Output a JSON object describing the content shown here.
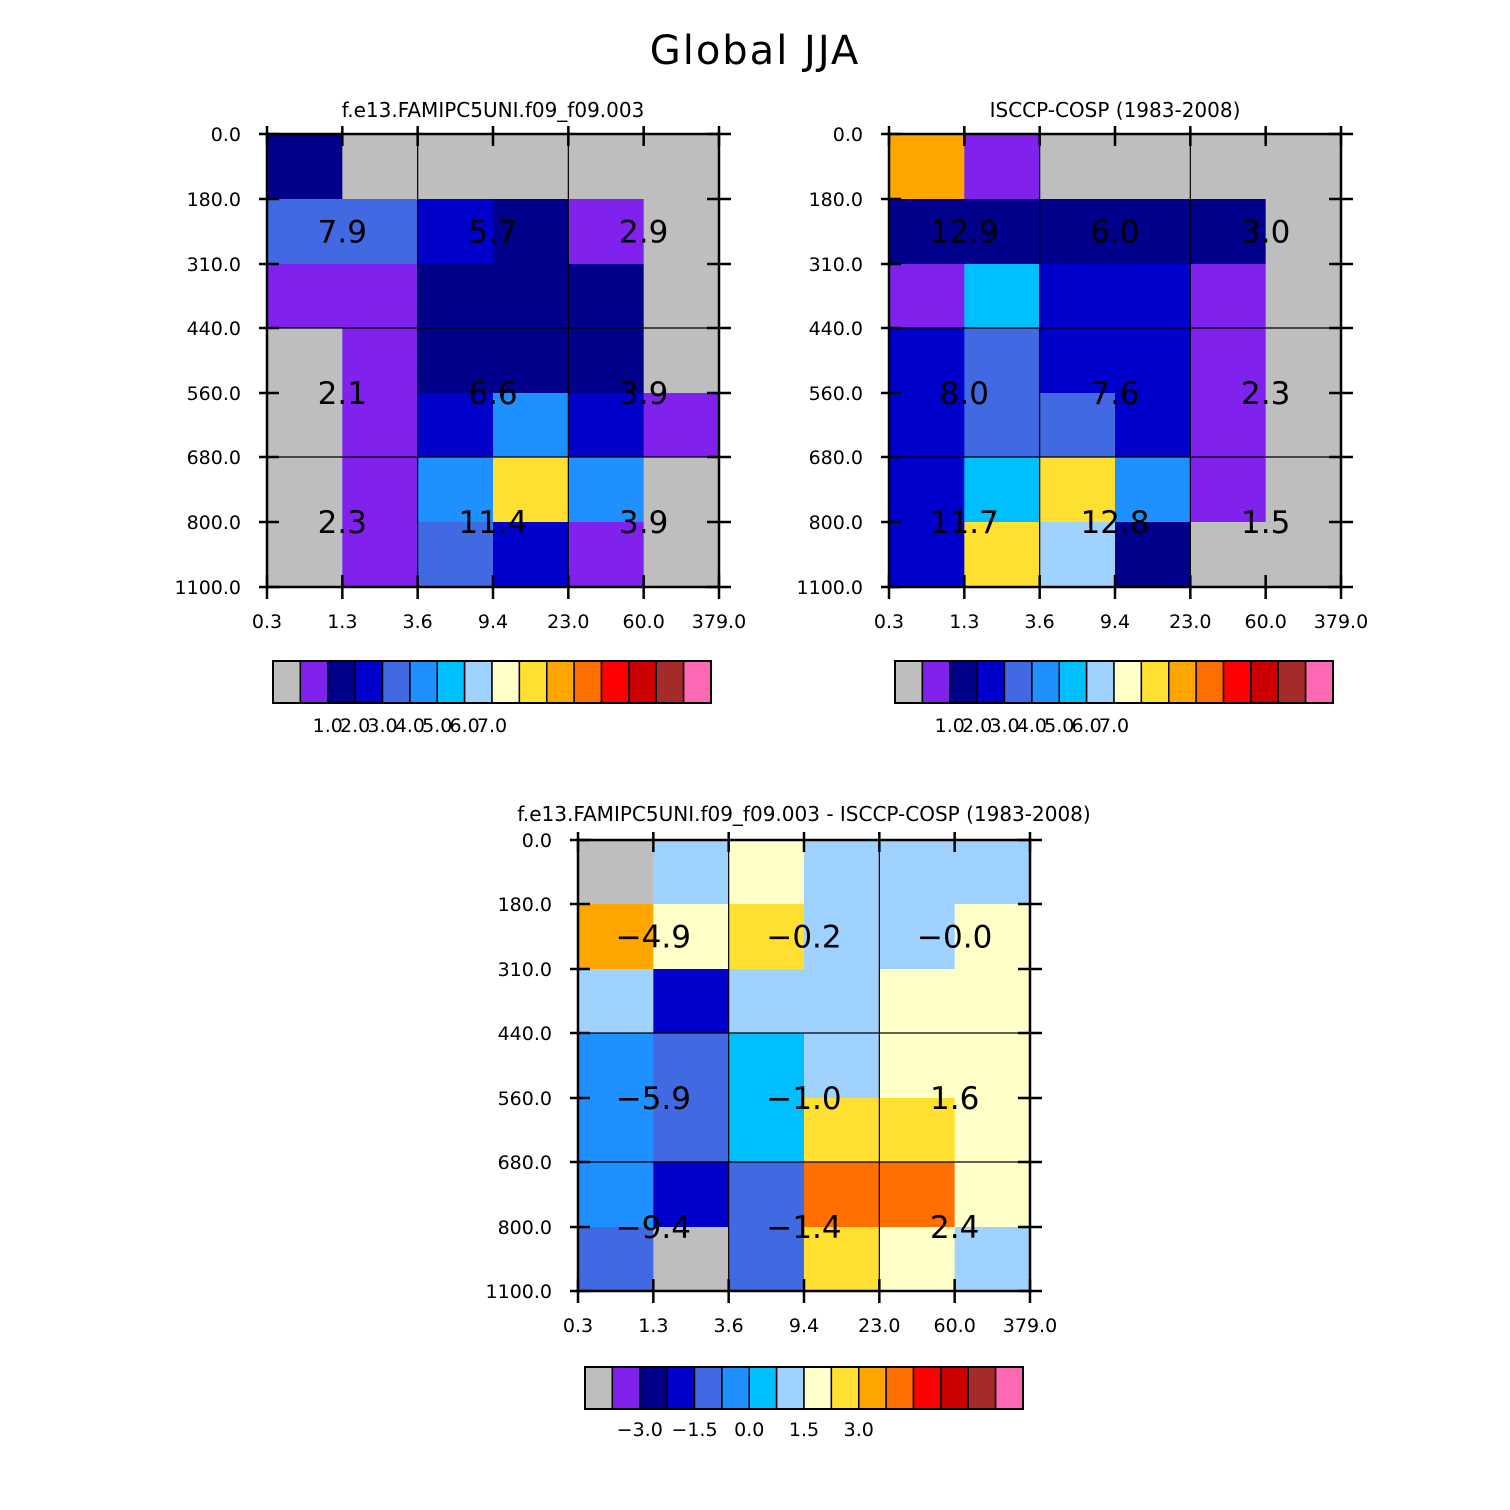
{
  "title": "Global JJA",
  "palette": [
    "#bebebe",
    "#8021ee",
    "#00008b",
    "#0000cd",
    "#4169e1",
    "#1e90ff",
    "#00bfff",
    "#a0d2ff",
    "#ffffc8",
    "#ffe030",
    "#ffa500",
    "#ff6e00",
    "#ff0000",
    "#cd0000",
    "#a52a2a",
    "#ff69b4"
  ],
  "chart_data": [
    {
      "type": "heatmap",
      "title": "f.e13.FAMIPC5UNI.f09_f09.003",
      "x_ticks": [
        "0.3",
        "1.3",
        "3.6",
        "9.4",
        "23.0",
        "60.0",
        "379.0"
      ],
      "y_ticks": [
        "0.0",
        "180.0",
        "310.0",
        "440.0",
        "560.0",
        "680.0",
        "800.0",
        "1100.0"
      ],
      "cell_color_index": [
        [
          2,
          0,
          0,
          0,
          0,
          0
        ],
        [
          4,
          4,
          3,
          2,
          1,
          0
        ],
        [
          1,
          1,
          2,
          2,
          2,
          0
        ],
        [
          0,
          1,
          2,
          2,
          2,
          0
        ],
        [
          0,
          1,
          3,
          5,
          3,
          1
        ],
        [
          0,
          1,
          5,
          9,
          5,
          0
        ],
        [
          0,
          1,
          4,
          3,
          1,
          0
        ]
      ],
      "block_values": [
        [
          "7.9",
          "5.7",
          "2.9"
        ],
        [
          "2.1",
          "6.6",
          "3.9"
        ],
        [
          "2.3",
          "11.4",
          "3.9"
        ]
      ],
      "colorbar_labels": [
        "1.0",
        "2.0",
        "3.0",
        "4.0",
        "5.0",
        "6.0",
        "7.0"
      ]
    },
    {
      "type": "heatmap",
      "title": "ISCCP-COSP (1983-2008)",
      "x_ticks": [
        "0.3",
        "1.3",
        "3.6",
        "9.4",
        "23.0",
        "60.0",
        "379.0"
      ],
      "y_ticks": [
        "0.0",
        "180.0",
        "310.0",
        "440.0",
        "560.0",
        "680.0",
        "800.0",
        "1100.0"
      ],
      "cell_color_index": [
        [
          10,
          1,
          0,
          0,
          0,
          0
        ],
        [
          2,
          2,
          2,
          2,
          2,
          0
        ],
        [
          1,
          6,
          3,
          3,
          1,
          0
        ],
        [
          3,
          4,
          3,
          3,
          1,
          0
        ],
        [
          3,
          4,
          4,
          3,
          1,
          0
        ],
        [
          3,
          6,
          9,
          5,
          1,
          0
        ],
        [
          3,
          9,
          7,
          2,
          0,
          0
        ]
      ],
      "block_values": [
        [
          "12.9",
          "6.0",
          "3.0"
        ],
        [
          "8.0",
          "7.6",
          "2.3"
        ],
        [
          "11.7",
          "12.8",
          "1.5"
        ]
      ],
      "colorbar_labels": [
        "1.0",
        "2.0",
        "3.0",
        "4.0",
        "5.0",
        "6.0",
        "7.0"
      ]
    },
    {
      "type": "heatmap",
      "title": "f.e13.FAMIPC5UNI.f09_f09.003 - ISCCP-COSP (1983-2008)",
      "x_ticks": [
        "0.3",
        "1.3",
        "3.6",
        "9.4",
        "23.0",
        "60.0",
        "379.0"
      ],
      "y_ticks": [
        "0.0",
        "180.0",
        "310.0",
        "440.0",
        "560.0",
        "680.0",
        "800.0",
        "1100.0"
      ],
      "cell_color_index": [
        [
          0,
          7,
          8,
          7,
          7,
          7
        ],
        [
          10,
          8,
          9,
          7,
          7,
          8
        ],
        [
          7,
          3,
          7,
          7,
          8,
          8
        ],
        [
          5,
          4,
          6,
          7,
          8,
          8
        ],
        [
          5,
          4,
          6,
          9,
          9,
          8
        ],
        [
          5,
          3,
          4,
          11,
          11,
          8
        ],
        [
          4,
          0,
          4,
          9,
          8,
          7
        ]
      ],
      "block_values": [
        [
          "-4.9",
          "-0.2",
          "-0.0"
        ],
        [
          "-5.9",
          "-1.0",
          "1.6"
        ],
        [
          "-9.4",
          "-1.4",
          "2.4"
        ]
      ],
      "colorbar_labels": [
        "-3.0",
        "-1.5",
        "0.0",
        "1.5",
        "3.0"
      ]
    }
  ]
}
